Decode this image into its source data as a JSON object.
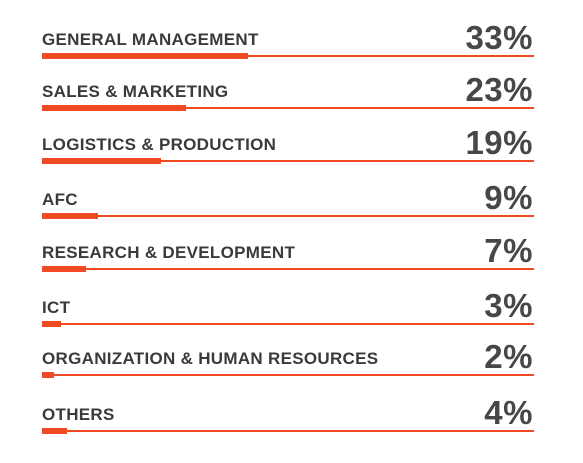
{
  "chart_data": {
    "type": "bar",
    "categories": [
      "GENERAL MANAGEMENT",
      "SALES & MARKETING",
      "LOGISTICS & PRODUCTION",
      "AFC",
      "RESEARCH & DEVELOPMENT",
      "ICT",
      "ORGANIZATION & HUMAN RESOURCES",
      "OTHERS"
    ],
    "values": [
      33,
      23,
      19,
      9,
      7,
      3,
      2,
      4
    ],
    "value_labels": [
      "33%",
      "23%",
      "19%",
      "9%",
      "7%",
      "3%",
      "2%",
      "4%"
    ],
    "unit": "%",
    "xlim": [
      0,
      100
    ],
    "orientation": "horizontal",
    "grid": false,
    "legend": "none",
    "title": "",
    "xlabel": "",
    "ylabel": "",
    "colors": {
      "bar": "#f04a23",
      "line": "#f04a23",
      "label": "#3a3a3a",
      "value": "#474747"
    }
  }
}
